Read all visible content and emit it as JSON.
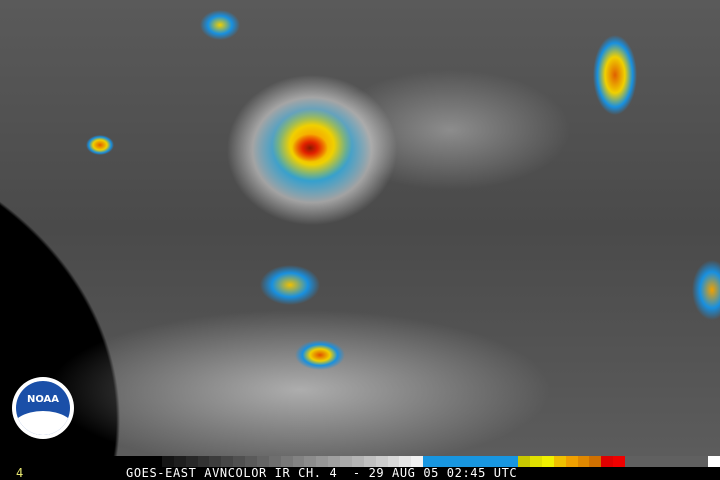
{
  "image": {
    "caption": "GOES-EAST AVNCOLOR IR CH. 4  - 29 AUG 05 02:45 UTC",
    "channel_label": "4",
    "logo_text": "NOAA",
    "colorbar": [
      "#000000",
      "#141414",
      "#1e1e1e",
      "#282828",
      "#323232",
      "#3c3c3c",
      "#464646",
      "#505050",
      "#5a5a5a",
      "#646464",
      "#6e6e6e",
      "#787878",
      "#828282",
      "#8c8c8c",
      "#969696",
      "#a0a0a0",
      "#aaaaaa",
      "#b4b4b4",
      "#c0c0c0",
      "#cccccc",
      "#d8d8d8",
      "#e6e6e6",
      "#f2f2f2",
      "#1896e0",
      "#1896e0",
      "#1896e0",
      "#1896e0",
      "#1896e0",
      "#1896e0",
      "#1896e0",
      "#1896e0",
      "#c8c800",
      "#e0e000",
      "#f0f000",
      "#f0c000",
      "#f0a000",
      "#e08800",
      "#d07000",
      "#e00000",
      "#f00000",
      "#606060",
      "#606060",
      "#606060",
      "#606060",
      "#606060",
      "#606060",
      "#606060",
      "#ffffff"
    ]
  }
}
